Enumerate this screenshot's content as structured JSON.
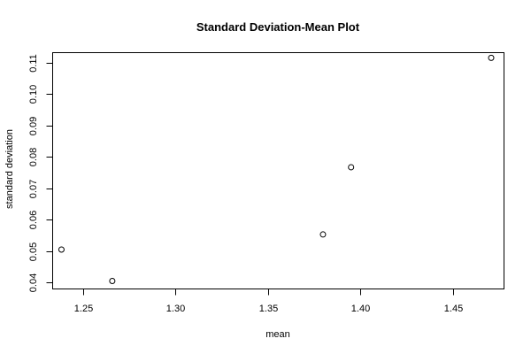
{
  "chart_data": {
    "type": "scatter",
    "title": "Standard Deviation-Mean Plot",
    "xlabel": "mean",
    "ylabel": "standard deviation",
    "xlim": [
      1.2333,
      1.4775
    ],
    "ylim": [
      0.0381,
      0.1133
    ],
    "x_ticks": [
      1.25,
      1.3,
      1.35,
      1.4,
      1.45
    ],
    "x_tick_labels": [
      "1.25",
      "1.30",
      "1.35",
      "1.40",
      "1.45"
    ],
    "y_ticks": [
      0.04,
      0.05,
      0.06,
      0.07,
      0.08,
      0.09,
      0.1,
      0.11
    ],
    "y_tick_labels": [
      "0.04",
      "0.05",
      "0.06",
      "0.07",
      "0.08",
      "0.09",
      "0.10",
      "0.11"
    ],
    "grid": false,
    "points": [
      {
        "x": 1.2383,
        "y": 0.0505
      },
      {
        "x": 1.2658,
        "y": 0.0405
      },
      {
        "x": 1.3798,
        "y": 0.0553
      },
      {
        "x": 1.395,
        "y": 0.0767
      },
      {
        "x": 1.4708,
        "y": 0.1115
      }
    ]
  }
}
